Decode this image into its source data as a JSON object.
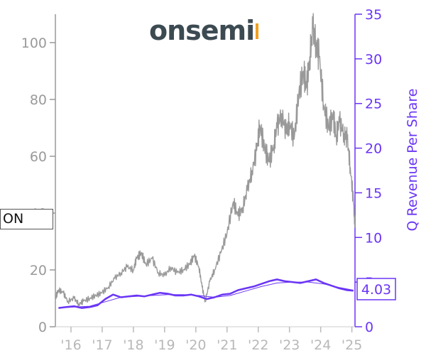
{
  "logo": {
    "text": "onsemi",
    "color": "#3c4a52",
    "accent": "#f0a020"
  },
  "ticker_label": "ON",
  "chart_data": {
    "type": "line",
    "title": "",
    "xlabel": "",
    "ylabel_left": "",
    "ylabel_right": "Q Revenue Per Share",
    "x_ticks": [
      "'16",
      "'17",
      "'18",
      "'19",
      "'20",
      "'21",
      "'22",
      "'23",
      "'24",
      "'25"
    ],
    "x_range": [
      2015.5,
      2025.1
    ],
    "left_axis": {
      "ylim": [
        0,
        110
      ],
      "ticks": [
        0,
        20,
        40,
        60,
        80,
        100
      ],
      "color": "#9a9a9a"
    },
    "right_axis": {
      "ylim": [
        0,
        35
      ],
      "ticks": [
        0,
        5,
        10,
        15,
        20,
        25,
        30,
        35
      ],
      "color": "#6a35f5"
    },
    "last_value_label": "4.03",
    "series": [
      {
        "axis": "left",
        "color": "#999999",
        "x": [
          2015.5,
          2015.6,
          2015.75,
          2015.9,
          2016.1,
          2016.25,
          2016.4,
          2016.6,
          2016.8,
          2017.0,
          2017.2,
          2017.4,
          2017.6,
          2017.8,
          2018.0,
          2018.1,
          2018.25,
          2018.4,
          2018.6,
          2018.8,
          2019.0,
          2019.2,
          2019.4,
          2019.6,
          2019.8,
          2019.95,
          2020.1,
          2020.2,
          2020.3,
          2020.45,
          2020.6,
          2020.8,
          2021.0,
          2021.2,
          2021.35,
          2021.5,
          2021.65,
          2021.8,
          2021.95,
          2022.05,
          2022.2,
          2022.35,
          2022.5,
          2022.6,
          2022.75,
          2022.9,
          2023.0,
          2023.15,
          2023.3,
          2023.45,
          2023.55,
          2023.65,
          2023.75,
          2023.85,
          2023.95,
          2024.1,
          2024.25,
          2024.4,
          2024.5,
          2024.6,
          2024.75,
          2024.85,
          2024.95,
          2025.05,
          2025.1
        ],
        "values": [
          10,
          13,
          12,
          9,
          10,
          8,
          9,
          10,
          11,
          12,
          14,
          17,
          19,
          21,
          20,
          24,
          26,
          22,
          24,
          19,
          18,
          21,
          19,
          20,
          22,
          25,
          21,
          14,
          9,
          16,
          20,
          26,
          33,
          44,
          39,
          42,
          48,
          55,
          62,
          71,
          63,
          58,
          64,
          70,
          75,
          68,
          72,
          66,
          82,
          90,
          84,
          95,
          105,
          100,
          95,
          78,
          70,
          74,
          67,
          72,
          68,
          66,
          56,
          44,
          35
        ]
      },
      {
        "axis": "right",
        "color": "#6a35f5",
        "x": [
          2015.6,
          2015.85,
          2016.1,
          2016.35,
          2016.6,
          2016.85,
          2017.1,
          2017.35,
          2017.6,
          2017.85,
          2018.1,
          2018.35,
          2018.6,
          2018.85,
          2019.1,
          2019.35,
          2019.6,
          2019.85,
          2020.1,
          2020.35,
          2020.6,
          2020.85,
          2021.1,
          2021.35,
          2021.6,
          2021.85,
          2022.1,
          2022.35,
          2022.6,
          2022.85,
          2023.1,
          2023.35,
          2023.6,
          2023.85,
          2024.1,
          2024.35,
          2024.6,
          2024.85,
          2025.05
        ],
        "values": [
          2.1,
          2.2,
          2.3,
          2.1,
          2.2,
          2.4,
          3.1,
          3.6,
          3.3,
          3.4,
          3.5,
          3.4,
          3.6,
          3.8,
          3.7,
          3.5,
          3.5,
          3.6,
          3.4,
          3.1,
          3.3,
          3.6,
          3.7,
          4.1,
          4.3,
          4.5,
          4.8,
          5.1,
          5.3,
          5.1,
          5.0,
          4.9,
          5.1,
          5.3,
          4.9,
          4.6,
          4.3,
          4.1,
          4.03
        ]
      },
      {
        "axis": "right",
        "color": "#6a35f5",
        "thin": true,
        "x": [
          2015.6,
          2016.1,
          2016.6,
          2017.1,
          2017.6,
          2018.1,
          2018.6,
          2019.1,
          2019.6,
          2020.1,
          2020.6,
          2021.1,
          2021.6,
          2022.1,
          2022.6,
          2023.1,
          2023.6,
          2024.1,
          2024.6,
          2025.05
        ],
        "values": [
          2.1,
          2.2,
          2.3,
          2.8,
          3.3,
          3.4,
          3.5,
          3.6,
          3.6,
          3.5,
          3.3,
          3.5,
          4.0,
          4.5,
          4.9,
          5.0,
          5.0,
          4.8,
          4.4,
          4.1
        ]
      }
    ]
  }
}
